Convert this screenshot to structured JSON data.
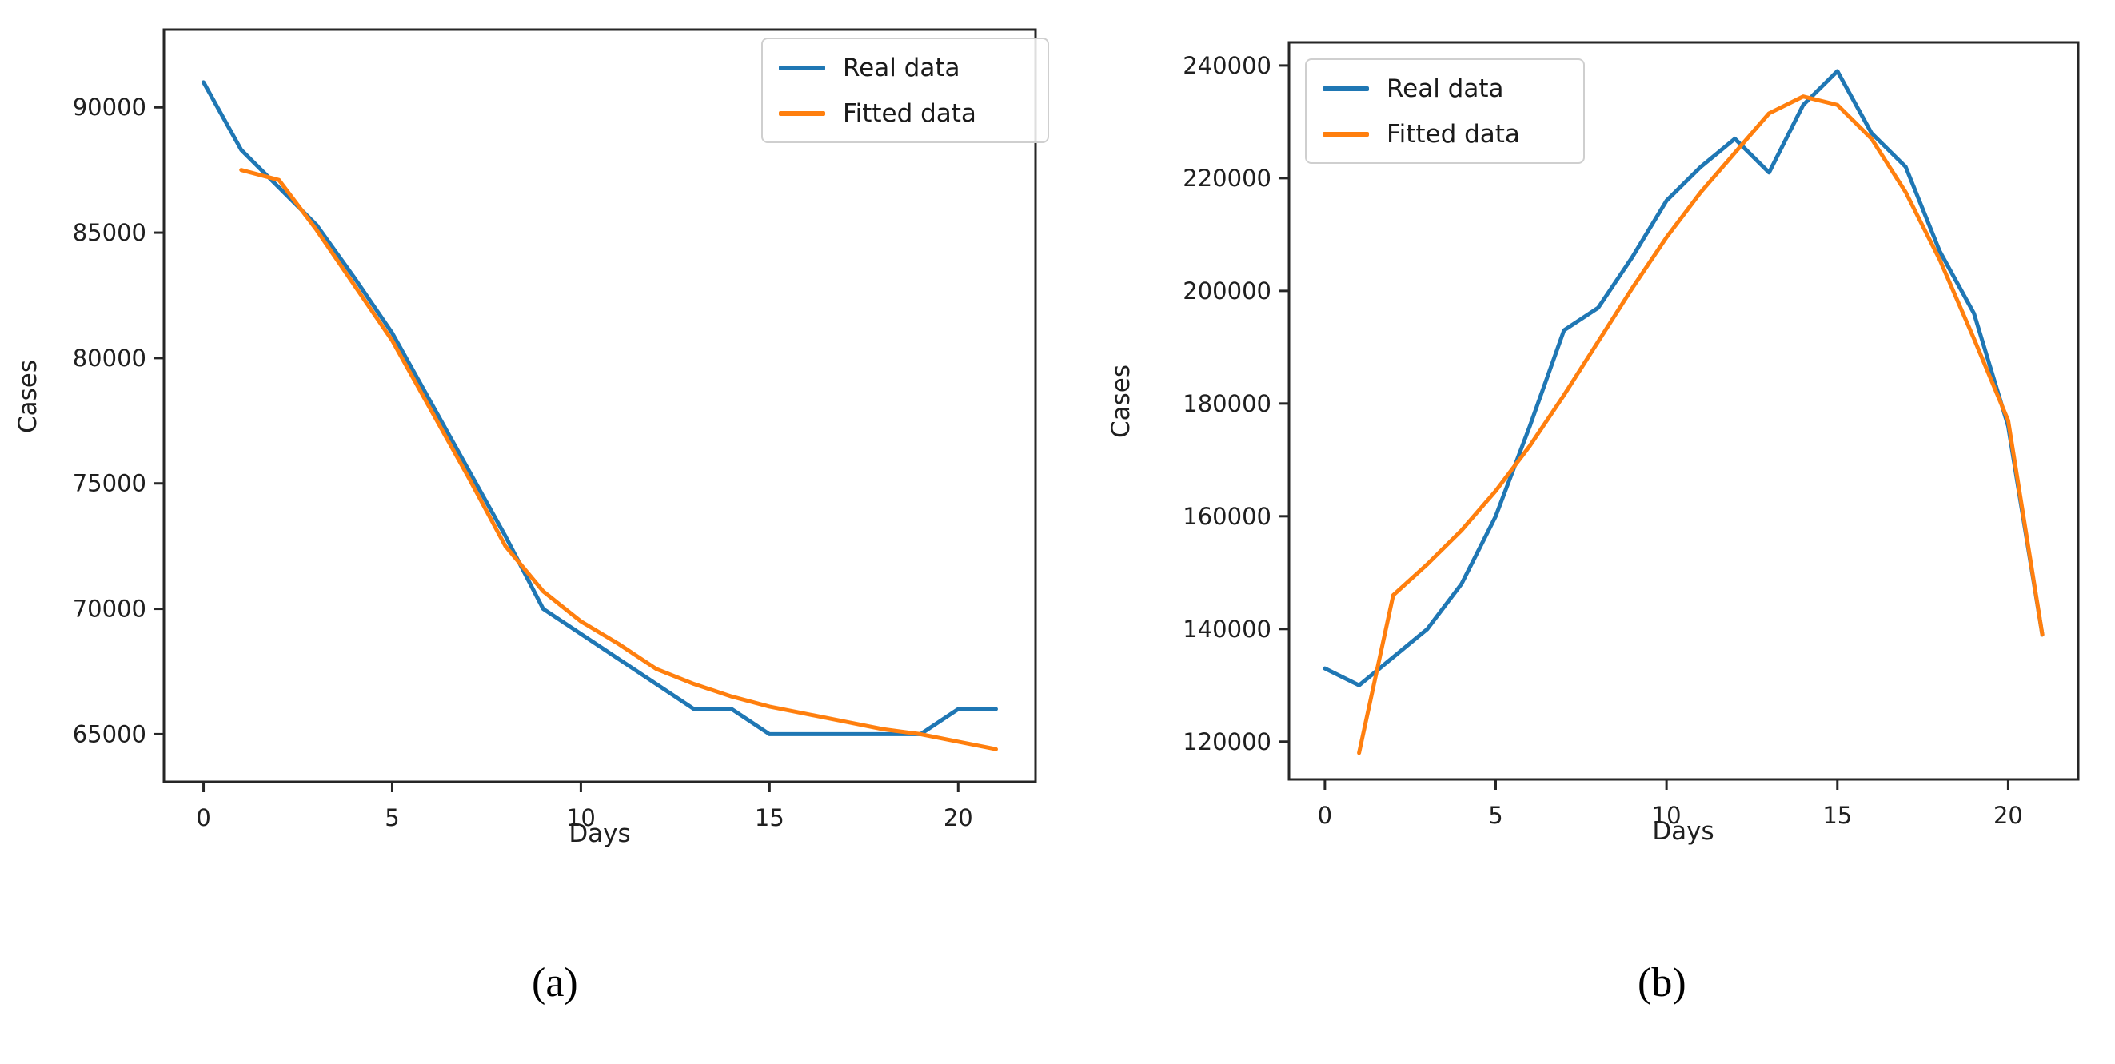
{
  "style": {
    "background": "#ffffff",
    "spine_color": "#262626",
    "real_color": "#1f77b4",
    "fitted_color": "#ff7f0e"
  },
  "chart_data": [
    {
      "type": "line",
      "caption": "(a)",
      "xlabel": "Days",
      "ylabel": "Cases",
      "legend_position": "upper right",
      "grid": false,
      "x_ticks": [
        0,
        5,
        10,
        15,
        20
      ],
      "y_ticks": [
        65000,
        70000,
        75000,
        80000,
        85000,
        90000
      ],
      "xlim": [
        -1.05,
        22.05
      ],
      "ylim": [
        63100,
        93100
      ],
      "series": [
        {
          "name": "Real data",
          "color": "#1f77b4",
          "x": [
            0,
            1,
            2,
            3,
            4,
            5,
            6,
            7,
            8,
            9,
            10,
            11,
            12,
            13,
            14,
            15,
            16,
            17,
            18,
            19,
            20,
            21
          ],
          "y": [
            91000,
            88300,
            86800,
            85300,
            83200,
            81000,
            78300,
            75600,
            72900,
            70000,
            69000,
            68000,
            67000,
            66000,
            66000,
            65000,
            65000,
            65000,
            65000,
            65000,
            66000,
            66000
          ]
        },
        {
          "name": "Fitted data",
          "color": "#ff7f0e",
          "x": [
            1,
            2,
            3,
            4,
            5,
            6,
            7,
            8,
            9,
            10,
            11,
            12,
            13,
            14,
            15,
            16,
            17,
            18,
            19,
            20,
            21
          ],
          "y": [
            87500,
            87100,
            85100,
            82900,
            80700,
            78000,
            75300,
            72500,
            70700,
            69500,
            68600,
            67600,
            67000,
            66500,
            66100,
            65800,
            65500,
            65200,
            65000,
            64700,
            64400
          ]
        }
      ]
    },
    {
      "type": "line",
      "caption": "(b)",
      "xlabel": "Days",
      "ylabel": "Cases",
      "legend_position": "upper left",
      "grid": false,
      "x_ticks": [
        0,
        5,
        10,
        15,
        20
      ],
      "y_ticks": [
        120000,
        140000,
        160000,
        180000,
        200000,
        220000,
        240000
      ],
      "xlim": [
        -1.05,
        22.05
      ],
      "ylim": [
        113300,
        244100
      ],
      "series": [
        {
          "name": "Real data",
          "color": "#1f77b4",
          "x": [
            0,
            1,
            2,
            3,
            4,
            5,
            6,
            7,
            8,
            9,
            10,
            11,
            12,
            13,
            14,
            15,
            16,
            17,
            18,
            19,
            20,
            21
          ],
          "y": [
            133000,
            130000,
            135000,
            140000,
            148000,
            160000,
            176000,
            193000,
            197000,
            206000,
            216000,
            222000,
            227000,
            221000,
            233000,
            239000,
            228000,
            222000,
            207000,
            196000,
            176000,
            139000
          ]
        },
        {
          "name": "Fitted data",
          "color": "#ff7f0e",
          "x": [
            1,
            2,
            3,
            4,
            5,
            6,
            7,
            8,
            9,
            10,
            11,
            12,
            13,
            14,
            15,
            16,
            17,
            18,
            19,
            20,
            21
          ],
          "y": [
            118000,
            146000,
            151500,
            157500,
            164500,
            172500,
            181500,
            191000,
            200500,
            209500,
            217500,
            224500,
            231500,
            234500,
            233000,
            227000,
            217500,
            205500,
            191500,
            177000,
            139000
          ]
        }
      ]
    }
  ]
}
